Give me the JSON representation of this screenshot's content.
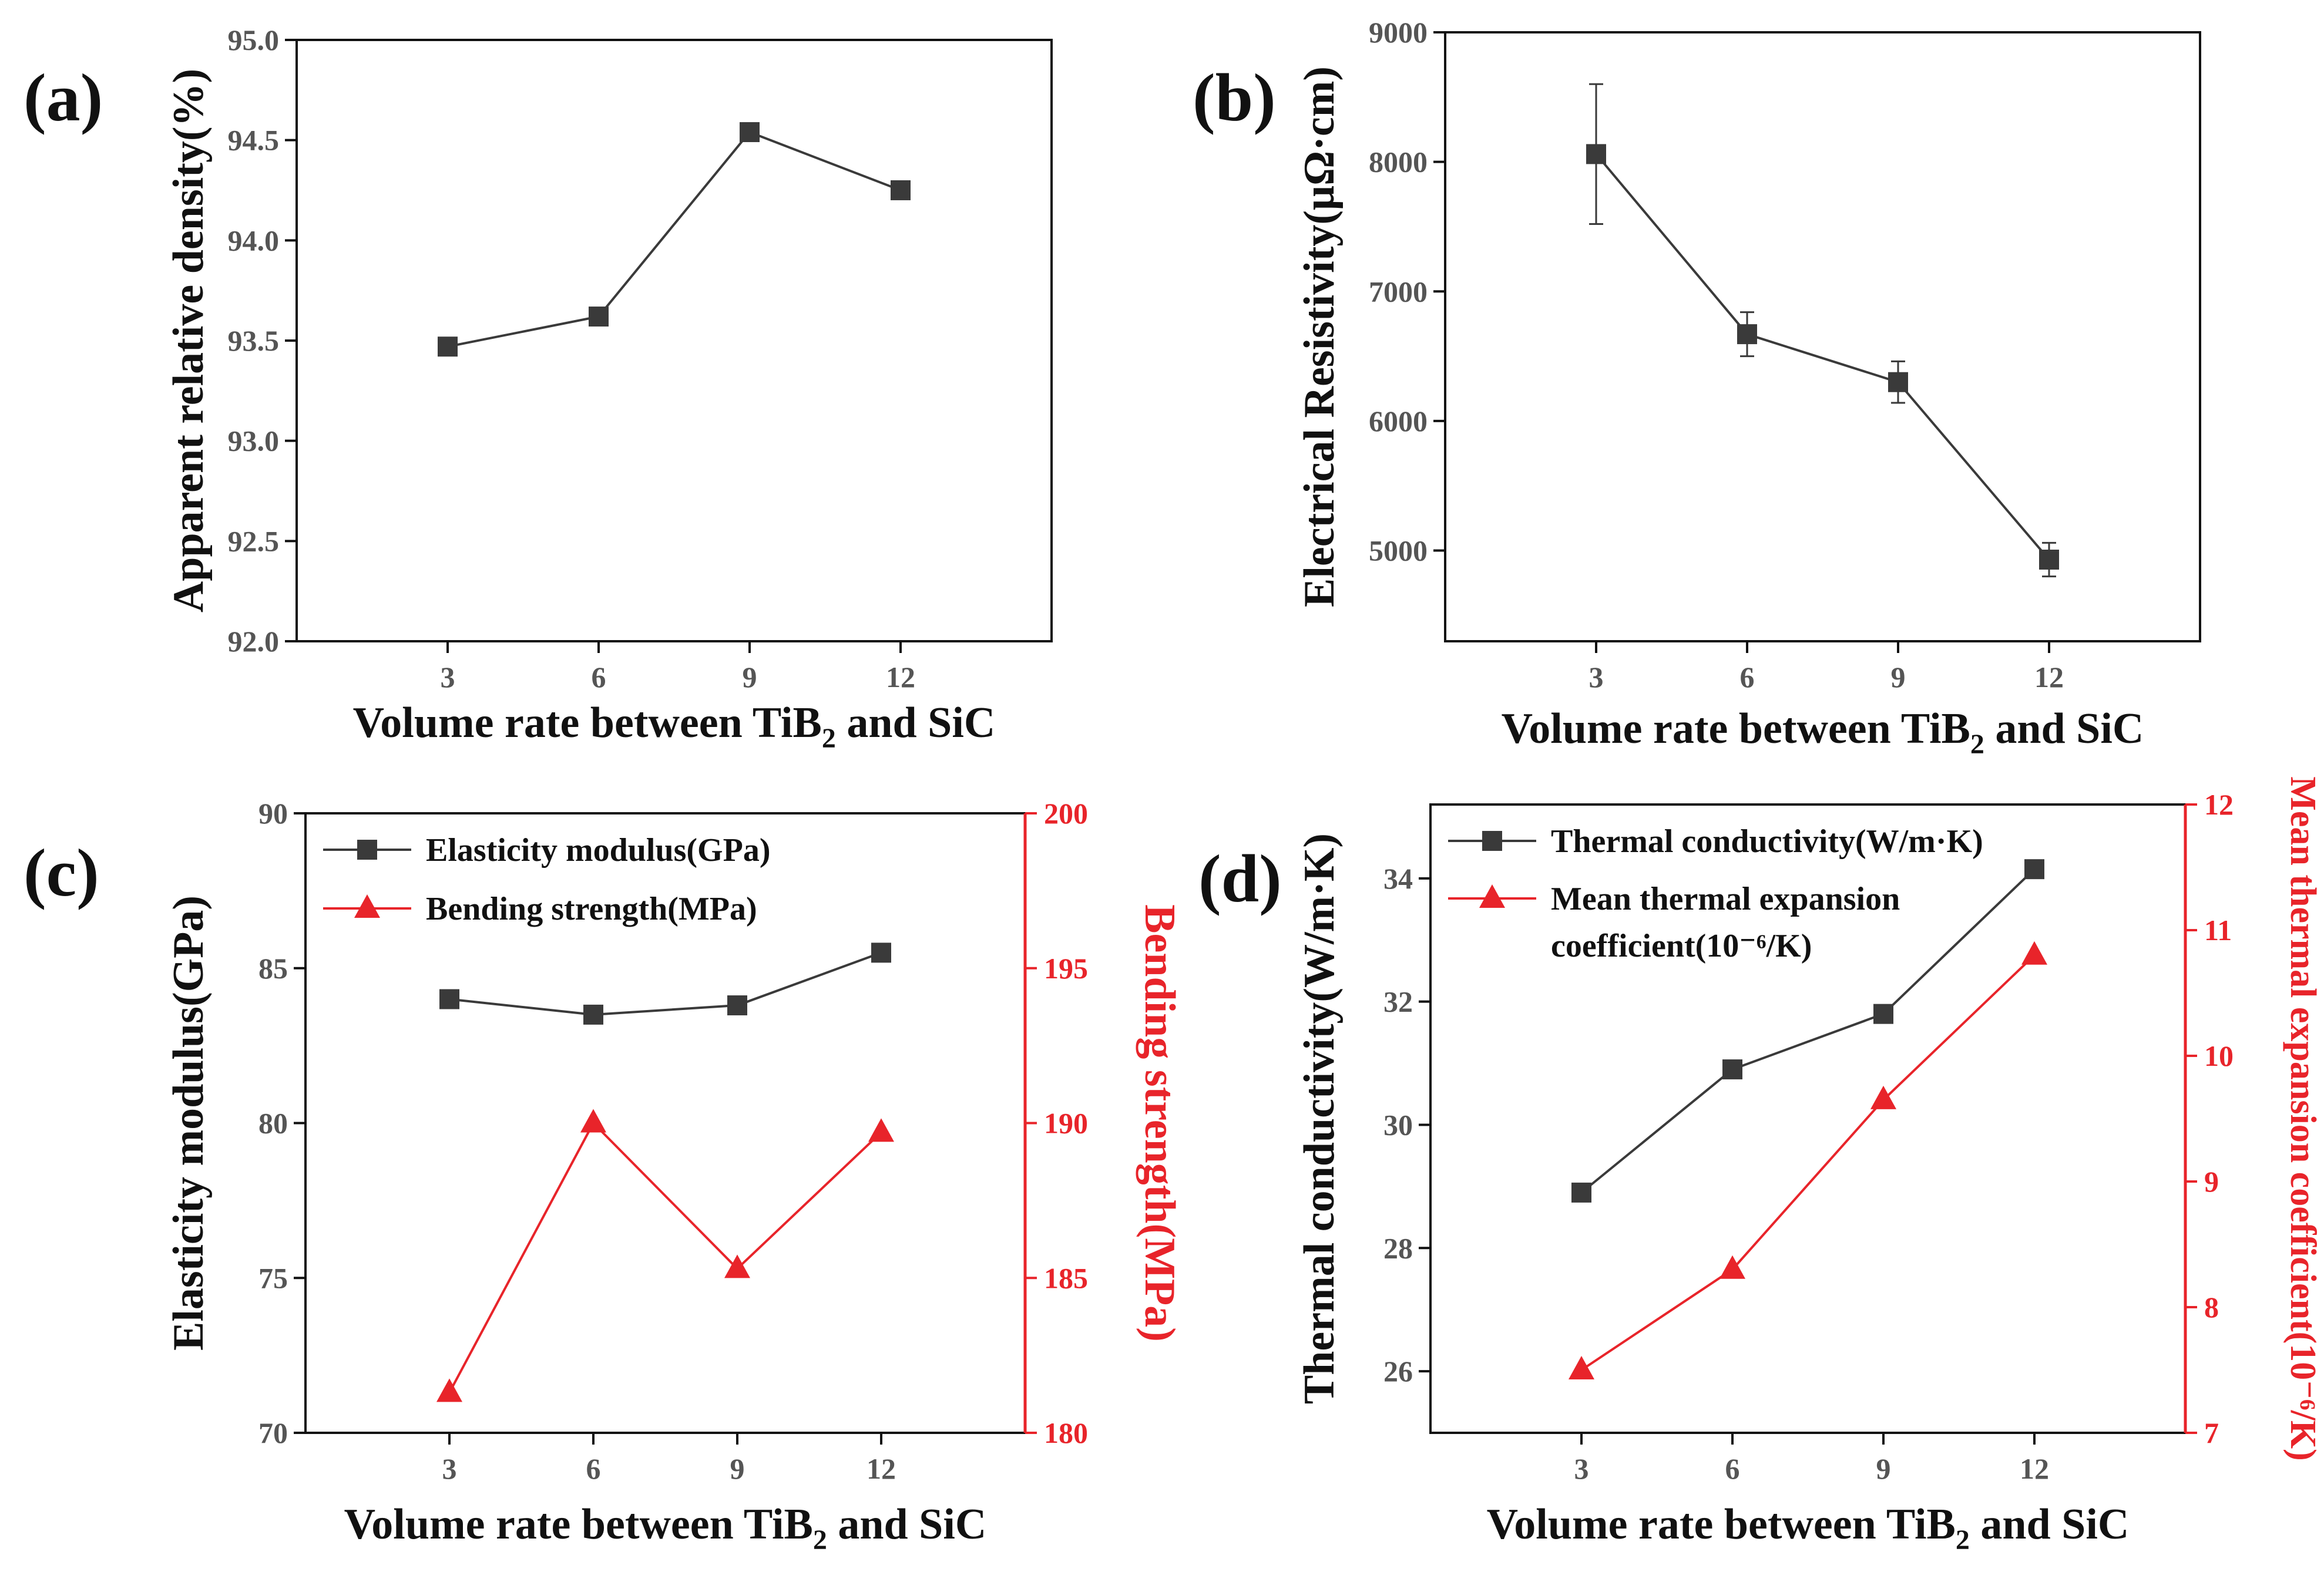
{
  "colors": {
    "black": "#3a3a3a",
    "red": "#e8242a",
    "axis": "#111111"
  },
  "chart_data": [
    {
      "id": "a",
      "type": "line",
      "panel_label": "(a)",
      "title": "",
      "xlabel": "Volume rate between TiB",
      "xlabel_sub": "2",
      "xlabel_tail": " and SiC",
      "ylabel": "Apparent relative density(%)",
      "x": [
        3,
        6,
        9,
        12
      ],
      "x_ticks": [
        "3",
        "6",
        "9",
        "12"
      ],
      "xlim": [
        0,
        15
      ],
      "ylim": [
        92.0,
        95.0
      ],
      "y_ticks": [
        "92.0",
        "92.5",
        "93.0",
        "93.5",
        "94.0",
        "94.5",
        "95.0"
      ],
      "series": [
        {
          "name": "Apparent relative density",
          "marker": "square",
          "color": "#3a3a3a",
          "values": [
            93.47,
            93.62,
            94.54,
            94.25
          ]
        }
      ]
    },
    {
      "id": "b",
      "type": "line",
      "panel_label": "(b)",
      "title": "",
      "xlabel": "Volume rate between TiB",
      "xlabel_sub": "2",
      "xlabel_tail": " and SiC",
      "ylabel": "Electrical Resistivity(μΩ·cm)",
      "x": [
        3,
        6,
        9,
        12
      ],
      "x_ticks": [
        "3",
        "6",
        "9",
        "12"
      ],
      "xlim": [
        0,
        15
      ],
      "ylim": [
        4300,
        9000
      ],
      "y_ticks": [
        "5000",
        "6000",
        "7000",
        "8000",
        "9000"
      ],
      "y_tick_values": [
        5000,
        6000,
        7000,
        8000,
        9000
      ],
      "series": [
        {
          "name": "Electrical Resistivity",
          "marker": "square",
          "color": "#3a3a3a",
          "values": [
            8060,
            6670,
            6300,
            4930
          ],
          "errors": [
            540,
            170,
            160,
            130
          ]
        }
      ]
    },
    {
      "id": "c",
      "type": "line",
      "panel_label": "(c)",
      "title": "",
      "xlabel": "Volume rate between TiB",
      "xlabel_sub": "2",
      "xlabel_tail": " and SiC",
      "ylabel": "Elasticity modulus(GPa)",
      "ylabel_right": "Bending strength(MPa)",
      "x": [
        3,
        6,
        9,
        12
      ],
      "x_ticks": [
        "3",
        "6",
        "9",
        "12"
      ],
      "xlim": [
        0,
        15
      ],
      "ylim": [
        70,
        90
      ],
      "y_ticks": [
        "70",
        "75",
        "80",
        "85",
        "90"
      ],
      "ylim_right": [
        180,
        200
      ],
      "y_ticks_right": [
        "180",
        "185",
        "190",
        "195",
        "200"
      ],
      "legend_position": "top-left",
      "series": [
        {
          "name": "Elasticity modulus(GPa)",
          "axis": "left",
          "marker": "square",
          "color": "#3a3a3a",
          "values": [
            84.0,
            83.5,
            83.8,
            85.5
          ]
        },
        {
          "name": "Bending strength(MPa)",
          "axis": "right",
          "marker": "triangle",
          "color": "#e8242a",
          "values": [
            181.3,
            190.0,
            185.3,
            189.7
          ]
        }
      ]
    },
    {
      "id": "d",
      "type": "line",
      "panel_label": "(d)",
      "title": "",
      "xlabel": "Volume rate between TiB",
      "xlabel_sub": "2",
      "xlabel_tail": " and SiC",
      "ylabel": "Thermal conductivity(W/m·K)",
      "ylabel_right": "Mean thermal expansion coefficient(10⁻⁶/K)",
      "x": [
        3,
        6,
        9,
        12
      ],
      "x_ticks": [
        "3",
        "6",
        "9",
        "12"
      ],
      "xlim": [
        0,
        15
      ],
      "ylim": [
        25,
        35.2
      ],
      "y_ticks": [
        "26",
        "28",
        "30",
        "32",
        "34"
      ],
      "y_tick_values": [
        26,
        28,
        30,
        32,
        34
      ],
      "ylim_right": [
        7,
        12
      ],
      "y_ticks_right": [
        "7",
        "8",
        "9",
        "10",
        "11",
        "12"
      ],
      "legend_position": "top-left",
      "series": [
        {
          "name": "Thermal conductivity(W/m·K)",
          "axis": "left",
          "marker": "square",
          "color": "#3a3a3a",
          "values": [
            28.9,
            30.9,
            31.8,
            34.15
          ]
        },
        {
          "name": "Mean thermal expansion",
          "name_line2": "coefficient(10⁻⁶/K)",
          "axis": "right",
          "marker": "triangle",
          "color": "#e8242a",
          "values": [
            7.5,
            8.3,
            9.65,
            10.8
          ]
        }
      ]
    }
  ]
}
